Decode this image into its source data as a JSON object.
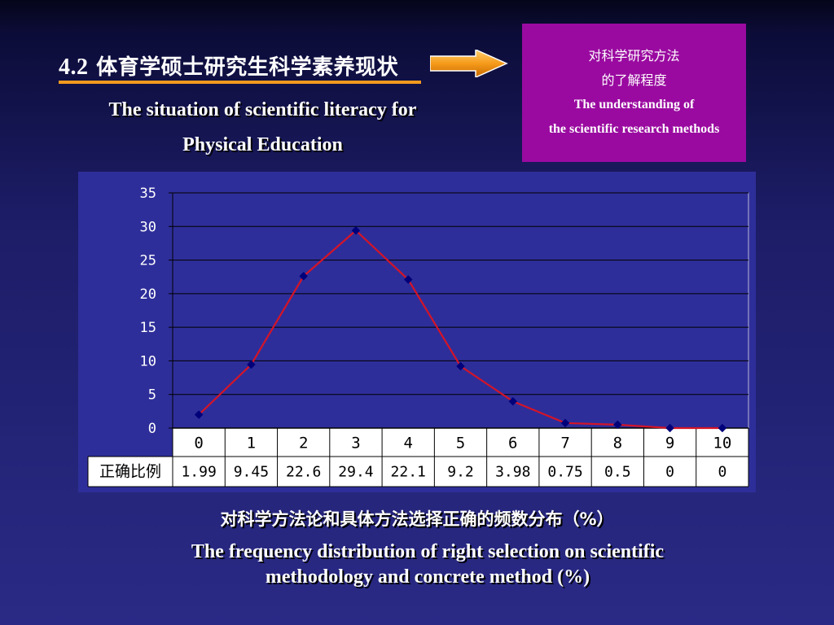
{
  "slide": {
    "title_num": "4.2",
    "title_zh": "体育学硕士研究生科学素养现状",
    "subtitle_line1": "The situation of scientific literacy for",
    "subtitle_line2": "Physical Education",
    "box_zh_line1": "对科学研究方法",
    "box_zh_line2": "的了解程度",
    "box_en_line1": "The understanding of",
    "box_en_line2": "the scientific research methods",
    "caption_zh": "对科学方法论和具体方法选择正确的频数分布（%）",
    "caption_en_line1": "The frequency distribution of right selection on scientific",
    "caption_en_line2": "methodology and concrete method (%)",
    "colors": {
      "accent": "#f29a1f",
      "box": "#9a0aa0",
      "line": "#d41428",
      "marker": "#00007a"
    }
  },
  "chart_data": {
    "type": "line",
    "categories": [
      "0",
      "1",
      "2",
      "3",
      "4",
      "5",
      "6",
      "7",
      "8",
      "9",
      "10"
    ],
    "series": [
      {
        "name": "正确比例",
        "values": [
          1.99,
          9.45,
          22.6,
          29.4,
          22.1,
          9.2,
          3.98,
          0.75,
          0.5,
          0,
          0
        ]
      }
    ],
    "value_labels": [
      "1.99",
      "9.45",
      "22.6",
      "29.4",
      "22.1",
      "9.2",
      "3.98",
      "0.75",
      "0.5",
      "0",
      "0"
    ],
    "yticks": [
      "0",
      "5",
      "10",
      "15",
      "20",
      "25",
      "30",
      "35"
    ],
    "ylim": [
      0,
      35
    ],
    "grid": true,
    "legend": "data-table"
  }
}
